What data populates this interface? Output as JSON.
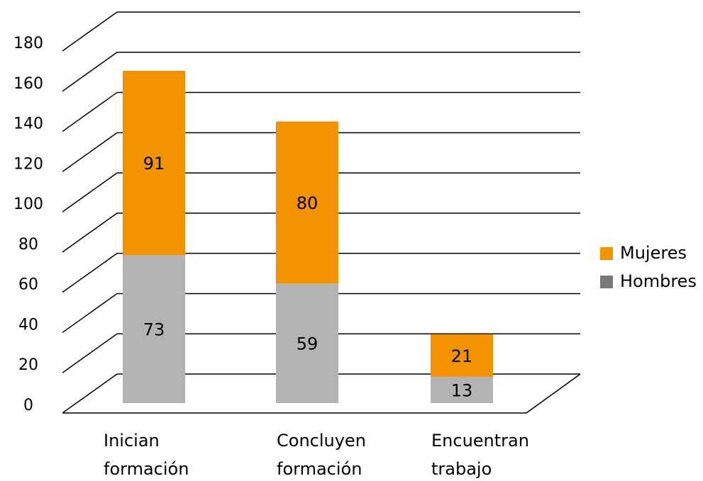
{
  "chart_data": {
    "type": "bar",
    "stacked": true,
    "three_d_floor": true,
    "categories": [
      [
        "Inician",
        "formación"
      ],
      [
        "Concluyen",
        "formación"
      ],
      [
        "Encuentran",
        "trabajo"
      ]
    ],
    "series": [
      {
        "name": "Hombres",
        "values": [
          73,
          59,
          13
        ],
        "color": "#b3b3b3"
      },
      {
        "name": "Mujeres",
        "values": [
          91,
          80,
          21
        ],
        "color": "#f39200"
      }
    ],
    "ylim": [
      0,
      180
    ],
    "yticks": [
      0,
      20,
      40,
      60,
      80,
      100,
      120,
      140,
      160,
      180
    ],
    "legend": {
      "position": "right",
      "entries": [
        {
          "name": "Mujeres",
          "color": "#f39200"
        },
        {
          "name": "Hombres",
          "color": "#7a7a7a"
        }
      ]
    },
    "grid": true
  }
}
